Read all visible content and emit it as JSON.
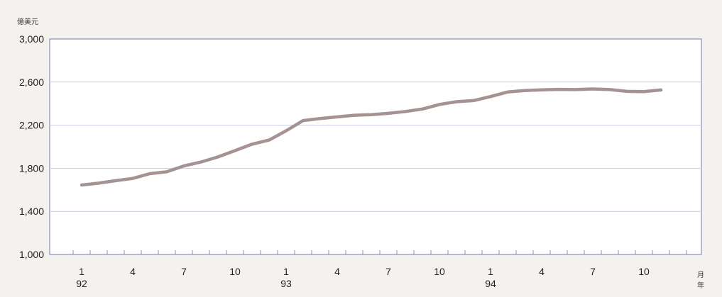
{
  "chart_data": {
    "type": "line",
    "ylabel": "億美元",
    "xlabel_month": "月",
    "xlabel_year": "年",
    "ylim": [
      1000,
      3000
    ],
    "y_ticks": [
      "1,000",
      "1,400",
      "1,800",
      "2,200",
      "2,600",
      "3,000"
    ],
    "y_tick_values": [
      1000,
      1400,
      1800,
      2200,
      2600,
      3000
    ],
    "grid": "horizontal",
    "x_tick_labels": [
      {
        "index": 0,
        "month": "1",
        "year": "92"
      },
      {
        "index": 3,
        "month": "4",
        "year": ""
      },
      {
        "index": 6,
        "month": "7",
        "year": ""
      },
      {
        "index": 9,
        "month": "10",
        "year": ""
      },
      {
        "index": 12,
        "month": "1",
        "year": "93"
      },
      {
        "index": 15,
        "month": "4",
        "year": ""
      },
      {
        "index": 18,
        "month": "7",
        "year": ""
      },
      {
        "index": 21,
        "month": "10",
        "year": ""
      },
      {
        "index": 24,
        "month": "1",
        "year": "94"
      },
      {
        "index": 27,
        "month": "4",
        "year": ""
      },
      {
        "index": 30,
        "month": "7",
        "year": ""
      },
      {
        "index": 33,
        "month": "10",
        "year": ""
      }
    ],
    "series": [
      {
        "color": "#a59393",
        "values": [
          1645,
          1662,
          1685,
          1706,
          1750,
          1768,
          1822,
          1858,
          1905,
          1964,
          2024,
          2062,
          2148,
          2243,
          2262,
          2277,
          2292,
          2298,
          2310,
          2327,
          2350,
          2392,
          2418,
          2428,
          2466,
          2508,
          2522,
          2528,
          2532,
          2530,
          2536,
          2530,
          2514,
          2512,
          2527
        ]
      }
    ]
  }
}
